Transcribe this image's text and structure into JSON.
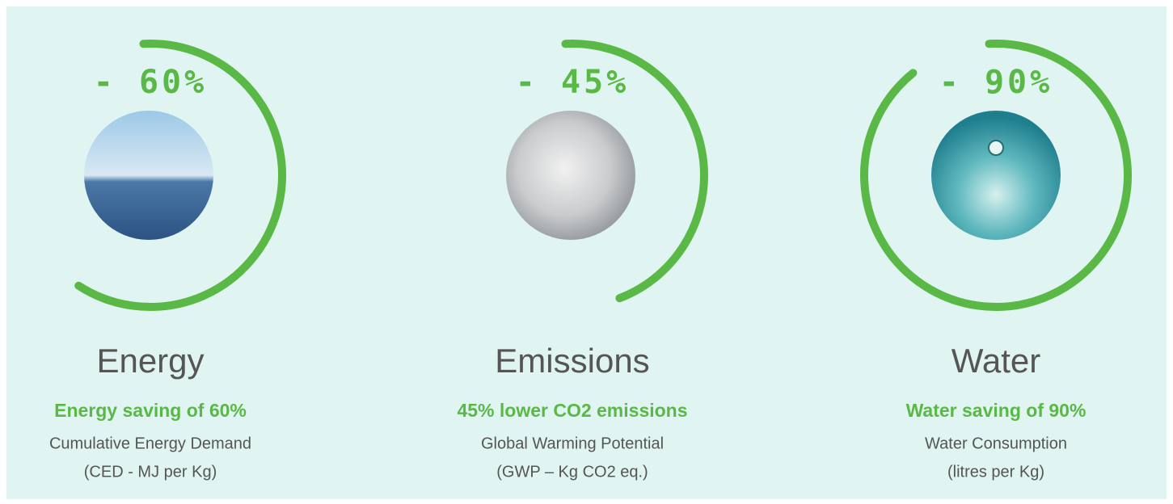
{
  "items": [
    {
      "value": 60,
      "value_label": "- 60%",
      "title": "Energy",
      "subtitle": "Energy saving of 60%",
      "lines": [
        "Cumulative Energy Demand",
        "(CED - MJ per Kg)"
      ]
    },
    {
      "value": 45,
      "value_label": "- 45%",
      "title": "Emissions",
      "subtitle": "45% lower CO2 emissions",
      "lines": [
        "Global Warming Potential",
        "(GWP – Kg CO2 eq.)"
      ]
    },
    {
      "value": 90,
      "value_label": "- 90%",
      "title": "Water",
      "subtitle": "Water saving of 90%",
      "lines": [
        "Water Consumption",
        "(litres per Kg)"
      ]
    }
  ]
}
